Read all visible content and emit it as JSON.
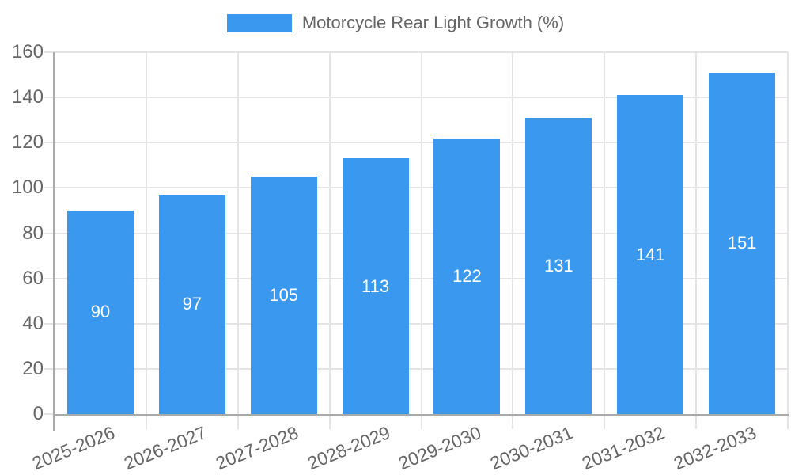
{
  "chart_data": {
    "type": "bar",
    "title": "Motorcycle Rear Light Growth (%)",
    "categories": [
      "2025-2026",
      "2026-2027",
      "2027-2028",
      "2028-2029",
      "2029-2030",
      "2030-2031",
      "2031-2032",
      "2032-2033"
    ],
    "values": [
      90,
      97,
      105,
      113,
      122,
      131,
      141,
      151
    ],
    "xlabel": "",
    "ylabel": "",
    "ylim": [
      0,
      160
    ],
    "yticks": [
      0,
      20,
      40,
      60,
      80,
      100,
      120,
      140,
      160
    ],
    "grid": true,
    "legend_position": "top-center",
    "x_label_rotation_deg": -22,
    "colors": {
      "bar": "#3A99EE",
      "bar_value_label": "#FFFFFF",
      "axis_line": "#AAAAAA",
      "gridline": "#E4E4E4",
      "text": "#666666",
      "background": "#FFFFFF"
    }
  }
}
